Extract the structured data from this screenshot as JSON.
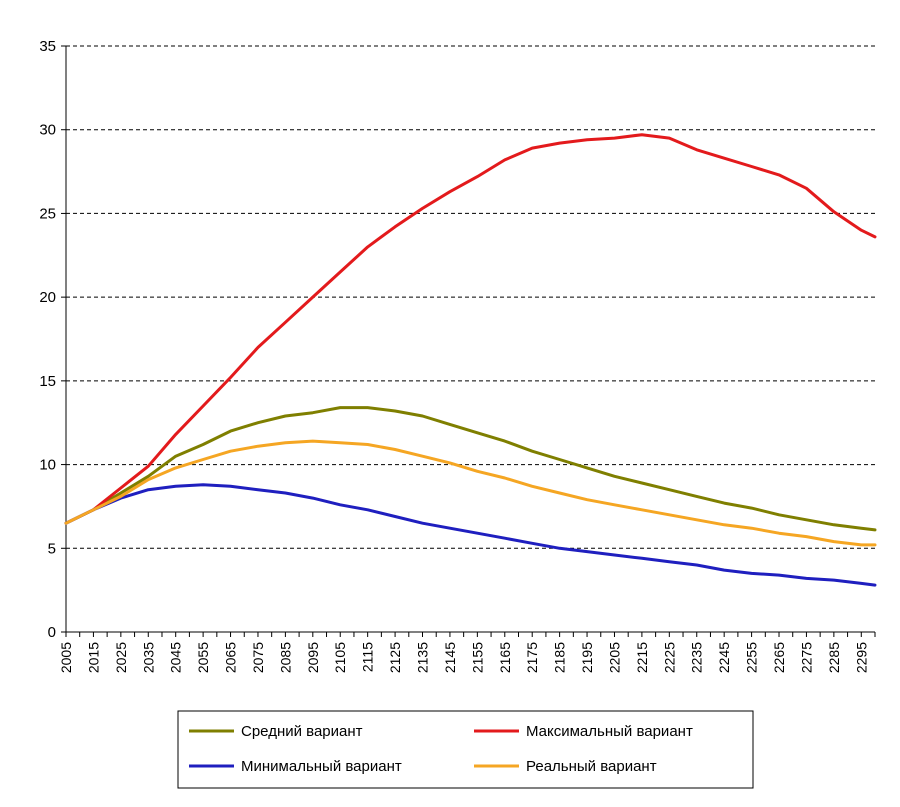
{
  "chart_data": {
    "type": "line",
    "title": "",
    "xlabel": "",
    "ylabel": "",
    "xlim": [
      2005,
      2300
    ],
    "ylim": [
      0,
      35
    ],
    "y_ticks": [
      0,
      5,
      10,
      15,
      20,
      25,
      30,
      35
    ],
    "y_tick_labels": [
      "0",
      "5",
      "10",
      "15",
      "20",
      "25",
      "30",
      "35"
    ],
    "x_tick_labels": [
      "2005",
      "2015",
      "2025",
      "2035",
      "2045",
      "2055",
      "2065",
      "2075",
      "2085",
      "2095",
      "2105",
      "2115",
      "2125",
      "2135",
      "2145",
      "2155",
      "2165",
      "2175",
      "2185",
      "2195",
      "2205",
      "2215",
      "2225",
      "2235",
      "2245",
      "2255",
      "2265",
      "2275",
      "2285",
      "2295"
    ],
    "grid": "horizontal-dashed",
    "legend_position": "bottom",
    "x": [
      2005,
      2015,
      2025,
      2035,
      2045,
      2055,
      2065,
      2075,
      2085,
      2095,
      2105,
      2115,
      2125,
      2135,
      2145,
      2155,
      2165,
      2175,
      2185,
      2195,
      2205,
      2215,
      2225,
      2235,
      2245,
      2255,
      2265,
      2275,
      2285,
      2295,
      2300
    ],
    "series": [
      {
        "name": "Средний вариант",
        "color": "#7f7f00",
        "values": [
          6.5,
          7.3,
          8.3,
          9.3,
          10.5,
          11.2,
          12.0,
          12.5,
          12.9,
          13.1,
          13.4,
          13.4,
          13.2,
          12.9,
          12.4,
          11.9,
          11.4,
          10.8,
          10.3,
          9.8,
          9.3,
          8.9,
          8.5,
          8.1,
          7.7,
          7.4,
          7.0,
          6.7,
          6.4,
          6.2,
          6.1
        ]
      },
      {
        "name": "Максимальный вариант",
        "color": "#e31a1c",
        "values": [
          6.5,
          7.3,
          8.6,
          9.9,
          11.8,
          13.5,
          15.2,
          17.0,
          18.5,
          20.0,
          21.5,
          23.0,
          24.2,
          25.3,
          26.3,
          27.2,
          28.2,
          28.9,
          29.2,
          29.4,
          29.5,
          29.7,
          29.5,
          28.8,
          28.3,
          27.8,
          27.3,
          26.5,
          25.1,
          24.0,
          23.6
        ]
      },
      {
        "name": "Минимальный вариант",
        "color": "#1f1fbf",
        "values": [
          6.5,
          7.3,
          8.0,
          8.5,
          8.7,
          8.8,
          8.7,
          8.5,
          8.3,
          8.0,
          7.6,
          7.3,
          6.9,
          6.5,
          6.2,
          5.9,
          5.6,
          5.3,
          5.0,
          4.8,
          4.6,
          4.4,
          4.2,
          4.0,
          3.7,
          3.5,
          3.4,
          3.2,
          3.1,
          2.9,
          2.8
        ]
      },
      {
        "name": "Реальный вариант",
        "color": "#f5a623",
        "values": [
          6.5,
          7.3,
          8.1,
          9.1,
          9.8,
          10.3,
          10.8,
          11.1,
          11.3,
          11.4,
          11.3,
          11.2,
          10.9,
          10.5,
          10.1,
          9.6,
          9.2,
          8.7,
          8.3,
          7.9,
          7.6,
          7.3,
          7.0,
          6.7,
          6.4,
          6.2,
          5.9,
          5.7,
          5.4,
          5.2,
          5.2
        ]
      }
    ]
  }
}
